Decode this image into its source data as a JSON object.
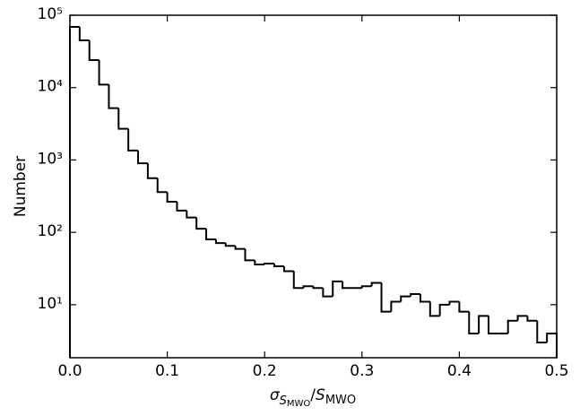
{
  "chart_data": {
    "type": "histogram",
    "xlabel": [
      "σ",
      "S",
      "MWO",
      "/",
      "S",
      "MWO"
    ],
    "ylabel": "Number",
    "bins": [
      0,
      0.01,
      0.02,
      0.03,
      0.04,
      0.05,
      0.06,
      0.07,
      0.08,
      0.09,
      0.1,
      0.11,
      0.12,
      0.13,
      0.14,
      0.15,
      0.16,
      0.17,
      0.18,
      0.19,
      0.2,
      0.21,
      0.22,
      0.23,
      0.24,
      0.25,
      0.26,
      0.27,
      0.28,
      0.29,
      0.3,
      0.31,
      0.32,
      0.33,
      0.34,
      0.35,
      0.36,
      0.37,
      0.38,
      0.39,
      0.4,
      0.41,
      0.42,
      0.43,
      0.44,
      0.45,
      0.46,
      0.47,
      0.48,
      0.49,
      0.5
    ],
    "values": [
      69000,
      45000,
      24000,
      11000,
      5200,
      2700,
      1350,
      900,
      560,
      360,
      265,
      200,
      160,
      112,
      80,
      71,
      65,
      59,
      41,
      36,
      37,
      34,
      29,
      17,
      18,
      17,
      13,
      21,
      17,
      17,
      18,
      20,
      8,
      11,
      13,
      14,
      11,
      7,
      10,
      11,
      8,
      4,
      7,
      4,
      4,
      6,
      7,
      6,
      3,
      4
    ],
    "color": "#000000",
    "log_y": true,
    "xlim": [
      0,
      0.5
    ],
    "ylim": [
      1.85,
      100000
    ],
    "xticks": [
      {
        "value": 0,
        "label": "0.0"
      },
      0.1,
      0.2,
      0.3,
      0.4,
      0.5
    ],
    "yticks": [
      {
        "value": 10,
        "label": "10¹"
      },
      {
        "value": 100,
        "label": "10²"
      },
      {
        "value": 1000,
        "label": "10³"
      },
      {
        "value": 10000,
        "label": "10⁴"
      },
      {
        "value": 100000,
        "label": "10⁵"
      }
    ]
  }
}
